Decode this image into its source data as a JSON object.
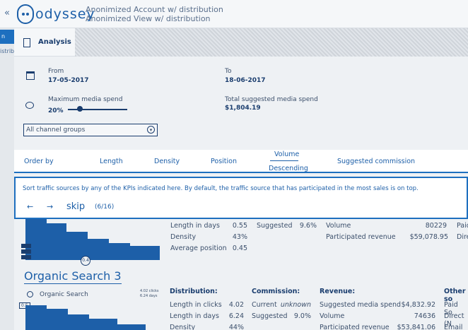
{
  "header": {
    "back_label": "«",
    "logo_text": "odyssey",
    "account_line1": "Anonimized Account w/ distribution",
    "account_line2": "Anonimized View w/ distribution"
  },
  "sidebar": {
    "active_item": "n",
    "second_item": "istribution"
  },
  "tabs": [
    {
      "label": "Analysis"
    }
  ],
  "filters": {
    "from_label": "From",
    "from_value": "17-05-2017",
    "to_label": "To",
    "to_value": "18-06-2017",
    "max_spend_label": "Maximum media spend",
    "max_spend_value": "20%",
    "max_spend_fraction": 0.2,
    "total_spend_label": "Total suggested media spend",
    "total_spend_value": "$1,804.19",
    "channel_select": "All channel groups"
  },
  "order": {
    "label": "Order by",
    "options": [
      "Length",
      "Density",
      "Position",
      "Volume",
      "Suggested commission"
    ],
    "active": "Volume",
    "direction": "Descending"
  },
  "tour": {
    "text": "Sort traffic sources by any of the KPIs indicated here. By default, the traffic source that has participated in the most sales is on top.",
    "prev": "←",
    "next": "→",
    "skip": "skip",
    "counter": "(6/16)"
  },
  "card1": {
    "length_days_label": "Length in days",
    "length_days_value": "0.55",
    "density_label": "Density",
    "density_value": "43%",
    "avg_position_label": "Average position",
    "avg_position_value": "0.45",
    "suggested_label": "Suggested",
    "suggested_value": "9.6%",
    "volume_label": "Volume",
    "volume_value": "80229",
    "revenue_label": "Participated revenue",
    "revenue_value": "$59,078.95",
    "right_col1": "Paid",
    "right_col2": "Dire",
    "badge": "0.4"
  },
  "card2": {
    "title": "Organic Search 3",
    "source_label": "Organic Search",
    "meta1": "4.02 clicks",
    "meta2": "6.24 days",
    "axis_label": "0.5",
    "distribution_heading": "Distribution:",
    "length_clicks_label": "Length in clicks",
    "length_clicks_value": "4.02",
    "length_days_label": "Length in days",
    "length_days_value": "6.24",
    "density_label": "Density",
    "density_value": "44%",
    "commission_heading": "Commission:",
    "current_label": "Current",
    "current_value": "unknown",
    "suggested_label": "Suggested",
    "suggested_value": "9.0%",
    "revenue_heading": "Revenue:",
    "sugg_spend_label": "Suggested media spend",
    "sugg_spend_value": "$4,832.92",
    "volume_label": "Volume",
    "volume_value": "74636",
    "part_revenue_label": "Participated revenue",
    "part_revenue_value": "$53,841.06",
    "other_heading": "Other so",
    "other1": "Paid So",
    "other2": "Direct (N",
    "other3": "Email S"
  }
}
